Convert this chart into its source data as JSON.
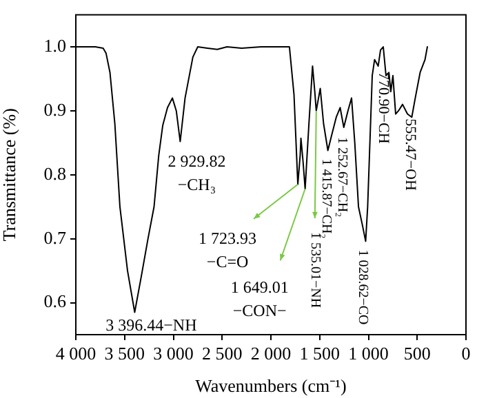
{
  "chart_data": {
    "type": "line",
    "xlabel": "Wavenumbers (cm⁻¹)",
    "ylabel": "Transmittance (%)",
    "x": [
      4000,
      3900,
      3800,
      3720,
      3690,
      3650,
      3600,
      3548,
      3470,
      3396.44,
      3330,
      3260,
      3198,
      3150,
      3109,
      3060,
      3010,
      2970,
      2929.82,
      2880,
      2800,
      2750,
      2650,
      2550,
      2450,
      2300,
      2100,
      1900,
      1810,
      1763,
      1723.93,
      1700,
      1692,
      1670,
      1649.01,
      1610,
      1573,
      1550,
      1535.01,
      1494,
      1460,
      1415.87,
      1380,
      1330,
      1290,
      1252.67,
      1210,
      1173,
      1140,
      1102,
      1060,
      1028.62,
      1008,
      961,
      937,
      900,
      876,
      848,
      820,
      790,
      770.9,
      749,
      721,
      692,
      650,
      600,
      555.47,
      520,
      470,
      420,
      396
    ],
    "series": [
      {
        "color": "#000000",
        "values": [
          1.0,
          1.0,
          1.0,
          0.998,
          0.99,
          0.96,
          0.88,
          0.75,
          0.65,
          0.585,
          0.64,
          0.7,
          0.75,
          0.83,
          0.877,
          0.905,
          0.92,
          0.9,
          0.852,
          0.92,
          0.984,
          1.0,
          0.998,
          0.996,
          1.0,
          0.998,
          1.0,
          1.0,
          1.0,
          0.925,
          0.785,
          0.83,
          0.857,
          0.82,
          0.778,
          0.88,
          0.97,
          0.93,
          0.9,
          0.935,
          0.88,
          0.838,
          0.86,
          0.89,
          0.905,
          0.874,
          0.9,
          0.92,
          0.85,
          0.75,
          0.72,
          0.696,
          0.75,
          0.955,
          0.98,
          0.97,
          0.995,
          1.0,
          0.955,
          0.96,
          0.93,
          0.955,
          0.895,
          0.9,
          0.91,
          0.895,
          0.89,
          0.92,
          0.96,
          0.98,
          1.0
        ]
      }
    ],
    "xlim": [
      4000,
      0
    ],
    "ylim": [
      0.55,
      1.05
    ],
    "xticks": [
      {
        "value": 4000,
        "label": "4 000"
      },
      {
        "value": 3500,
        "label": "3 500"
      },
      {
        "value": 3000,
        "label": "3 000"
      },
      {
        "value": 2500,
        "label": "2 500"
      },
      {
        "value": 2000,
        "label": "2 000"
      },
      {
        "value": 1500,
        "label": "1 500"
      },
      {
        "value": 1000,
        "label": "1 000"
      },
      500,
      0
    ],
    "yticks": [
      0.6,
      0.7,
      0.8,
      0.9,
      {
        "value": 1,
        "label": "1.0"
      }
    ],
    "annotations": [
      {
        "text": "3 396.44−NH",
        "x": 3396.44,
        "y": 0.585
      },
      {
        "text": "2 929.82\n−CH₃",
        "x": 2929.82,
        "y": 0.852
      },
      {
        "text": "1 723.93\n−C=O",
        "x": 1723.93,
        "y": 0.785
      },
      {
        "text": "1 649.01\n−CON−",
        "x": 1649.01,
        "y": 0.778
      },
      {
        "text": "1 535.01−NH",
        "x": 1535.01,
        "y": 0.9
      },
      {
        "text": "1 415.87−CH₂",
        "x": 1415.87,
        "y": 0.838
      },
      {
        "text": "1 252.67−CH₂",
        "x": 1252.67,
        "y": 0.874
      },
      {
        "text": "1 028.62−CO",
        "x": 1028.62,
        "y": 0.696
      },
      {
        "text": "770.90−CH",
        "x": 770.9,
        "y": 0.93
      },
      {
        "text": "555.47−OH",
        "x": 555.47,
        "y": 0.89
      }
    ]
  }
}
